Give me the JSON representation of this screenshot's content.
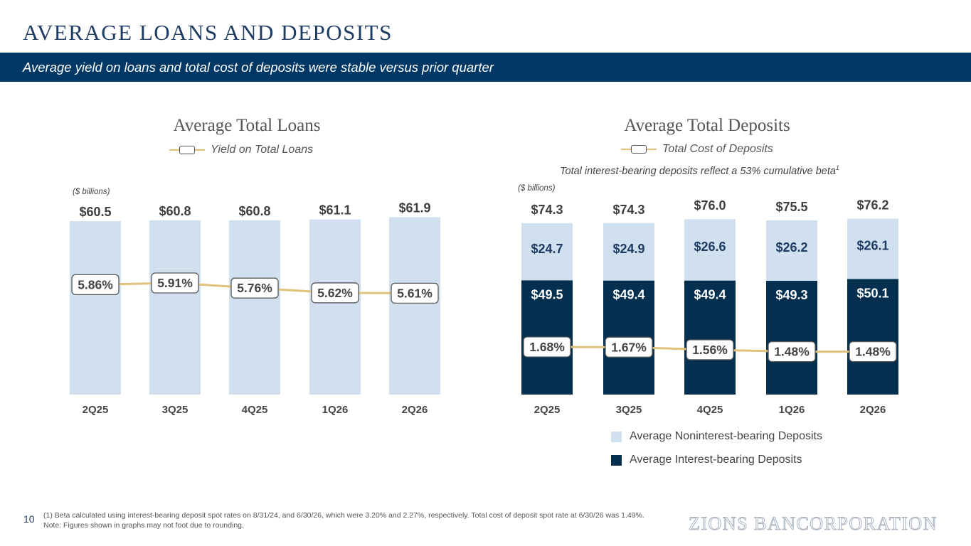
{
  "header": {
    "title": "AVERAGE LOANS AND DEPOSITS",
    "subtitle": "Average yield on loans and total cost of deposits were stable versus prior quarter"
  },
  "colors": {
    "navy": "#003865",
    "bar_light": "#d0e0ee",
    "bar_dark": "#042f4f",
    "rate_line": "#e1c27a"
  },
  "chart_data": [
    {
      "type": "bar",
      "title": "Average Total Loans",
      "units": "($ billions)",
      "legend_position": "top-center",
      "categories": [
        "2Q25",
        "3Q25",
        "4Q25",
        "1Q26",
        "2Q26"
      ],
      "series": [
        {
          "values": [
            60.5,
            60.8,
            60.8,
            61.1,
            61.9
          ],
          "labels": [
            "$60.5",
            "$60.8",
            "$60.8",
            "$61.1",
            "$61.9"
          ]
        }
      ],
      "line_series": {
        "name": "Yield on Total Loans",
        "values": [
          5.86,
          5.91,
          5.76,
          5.62,
          5.61
        ],
        "labels": [
          "5.86%",
          "5.91%",
          "5.76%",
          "5.62%",
          "5.61%"
        ]
      },
      "ylim": [
        0,
        62
      ],
      "grid": false
    },
    {
      "type": "bar",
      "stacked": true,
      "title": "Average Total Deposits",
      "note": "Total interest-bearing deposits reflect a 53% cumulative beta",
      "note_ref": "1",
      "units": "($ billions)",
      "legend_position": "bottom",
      "categories": [
        "2Q25",
        "3Q25",
        "4Q25",
        "1Q26",
        "2Q26"
      ],
      "totals": [
        "$74.3",
        "$74.3",
        "$76.0",
        "$75.5",
        "$76.2"
      ],
      "series": [
        {
          "name": "Average Interest-bearing Deposits",
          "values": [
            49.5,
            49.4,
            49.4,
            49.3,
            50.1
          ],
          "labels": [
            "$49.5",
            "$49.4",
            "$49.4",
            "$49.3",
            "$50.1"
          ]
        },
        {
          "name": "Average Noninterest-bearing Deposits",
          "values": [
            24.7,
            24.9,
            26.6,
            26.2,
            26.1
          ],
          "labels": [
            "$24.7",
            "$24.9",
            "$26.6",
            "$26.2",
            "$26.1"
          ]
        }
      ],
      "line_series": {
        "name": "Total Cost of Deposits",
        "values": [
          1.68,
          1.67,
          1.56,
          1.48,
          1.48
        ],
        "labels": [
          "1.68%",
          "1.67%",
          "1.56%",
          "1.48%",
          "1.48%"
        ]
      },
      "ylim": [
        0,
        77
      ],
      "grid": false
    }
  ],
  "footer": {
    "page_number": "10",
    "footnote_1": "(1) Beta calculated using interest-bearing deposit spot rates on 8/31/24, and 6/30/26, which were 3.20% and 2.27%, respectively. Total cost of deposit spot rate at 6/30/26 was 1.49%.",
    "footnote_2": "Note: Figures shown in graphs may not foot due to rounding.",
    "brand": "ZIONS BANCORPORATION"
  }
}
